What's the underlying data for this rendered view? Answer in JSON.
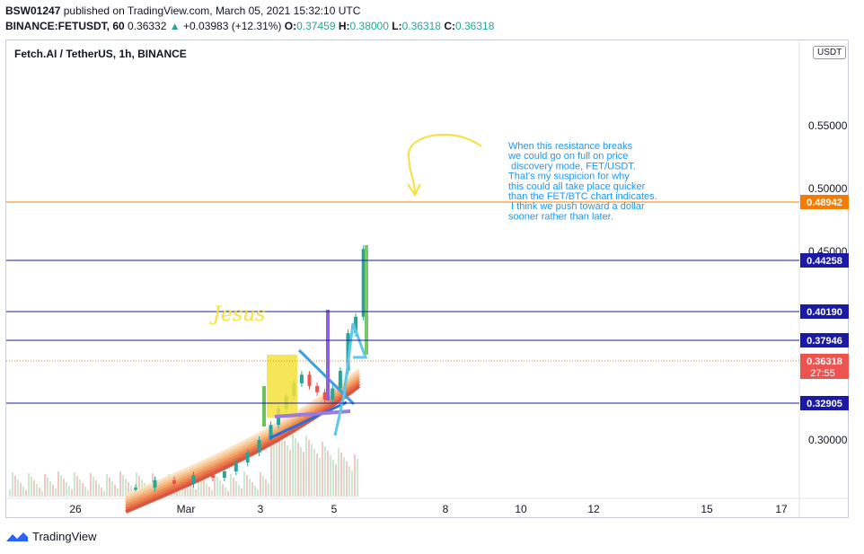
{
  "header": {
    "publisher_user": "BSW01247",
    "published_text": "published on TradingView.com, March 05, 2021 15:32:10 UTC",
    "symbol_full": "BINANCE:FETUSDT, 60",
    "last_price": "0.36332",
    "change_arrow": "▲",
    "change_text": "+0.03983 (+12.31%)",
    "o_label": "O:",
    "o_val": "0.37459",
    "h_label": "H:",
    "h_val": "0.38000",
    "l_label": "L:",
    "l_val": "0.36318",
    "c_label": "C:",
    "c_val": "0.36318"
  },
  "chart_title": "Fetch.AI / TetherUS, 1h, BINANCE",
  "unit_button": "USDT",
  "annotation_text": [
    "When this resistance breaks",
    "we could go on full on price",
    " discovery mode, FET/USDT.",
    "That's my suspicion for why",
    "this could all take place quicker",
    "than the FET/BTC chart indicates.",
    " I think we push toward a dollar",
    "sooner rather than later."
  ],
  "handwritten_label": "Jesus",
  "brand": "TradingView",
  "colors": {
    "orange_line": "#f57c00",
    "blue_line": "#1a1aa6",
    "price_label": "#ef5350",
    "annotation": "#2196f3",
    "yellow": "#f5e13a"
  },
  "chart_data": {
    "type": "candlestick",
    "title": "Fetch.AI / TetherUS, 1h, BINANCE",
    "y_range": [
      0.25,
      0.59
    ],
    "y_ticks": [
      "0.30000",
      "0.45000",
      "0.50000",
      "0.55000"
    ],
    "x_ticks": [
      "26",
      "Mar",
      "3",
      "5",
      "8",
      "10",
      "12",
      "15",
      "17"
    ],
    "horizontal_lines": [
      {
        "label": "0.48942",
        "value": 0.48942,
        "color": "#f57c00",
        "style": "solid"
      },
      {
        "label": "0.44258",
        "value": 0.44258,
        "color": "#1a1aa6",
        "style": "solid"
      },
      {
        "label": "0.40190",
        "value": 0.4019,
        "color": "#1a1aa6",
        "style": "solid"
      },
      {
        "label": "0.37946",
        "value": 0.37946,
        "color": "#1a1aa6",
        "style": "solid"
      },
      {
        "label": "0.32905",
        "value": 0.32905,
        "color": "#1a1aa6",
        "style": "solid"
      }
    ],
    "current_price": {
      "label": "0.36318",
      "value": 0.36318,
      "countdown": "27:55"
    },
    "candles": [
      [
        0,
        0.262
      ],
      [
        0.5,
        0.268
      ],
      [
        1,
        0.265
      ],
      [
        1.5,
        0.272
      ],
      [
        2,
        0.27
      ],
      [
        2.3,
        0.275
      ],
      [
        2.6,
        0.282
      ],
      [
        2.9,
        0.29
      ],
      [
        3.2,
        0.3
      ],
      [
        3.5,
        0.312
      ],
      [
        3.7,
        0.325
      ],
      [
        3.9,
        0.335
      ],
      [
        4.1,
        0.345
      ],
      [
        4.3,
        0.352
      ],
      [
        4.5,
        0.343
      ],
      [
        4.7,
        0.338
      ],
      [
        4.9,
        0.332
      ],
      [
        5.1,
        0.341
      ],
      [
        5.3,
        0.355
      ],
      [
        5.5,
        0.385
      ],
      [
        5.7,
        0.398
      ],
      [
        5.9,
        0.452
      ]
    ]
  }
}
